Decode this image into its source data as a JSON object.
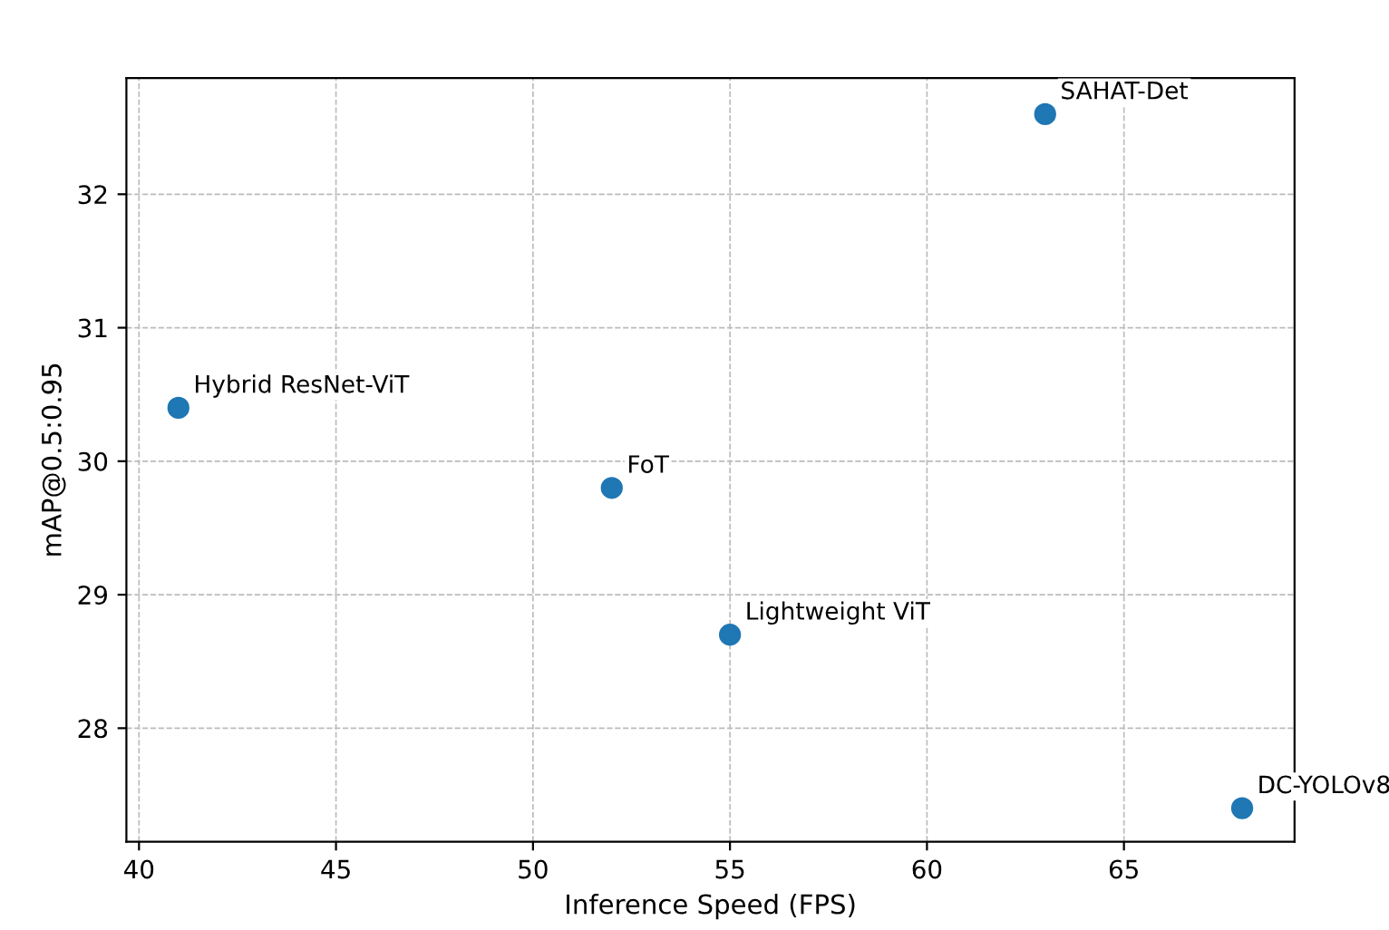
{
  "chart_data": {
    "type": "scatter",
    "xlabel": "Inference Speed (FPS)",
    "ylabel": "mAP@0.5:0.95",
    "x": [
      41,
      52,
      55,
      63,
      68
    ],
    "values": [
      30.4,
      29.8,
      28.7,
      32.6,
      27.4
    ],
    "color": "#1f77b4",
    "marker": "circle",
    "annotations": [
      {
        "text": "Hybrid ResNet-ViT",
        "x": 41,
        "y": 30.4
      },
      {
        "text": "FoT",
        "x": 52,
        "y": 29.8
      },
      {
        "text": "Lightweight ViT",
        "x": 55,
        "y": 28.7
      },
      {
        "text": "SAHAT-Det",
        "x": 63,
        "y": 32.6
      },
      {
        "text": "DC-YOLOv8",
        "x": 68,
        "y": 27.4
      }
    ],
    "xlim": [
      39.68,
      69.33
    ],
    "ylim": [
      27.15,
      32.87
    ],
    "xticks": [
      40,
      45,
      50,
      55,
      60,
      65
    ],
    "yticks": [
      28,
      29,
      30,
      31,
      32
    ],
    "grid": true
  }
}
